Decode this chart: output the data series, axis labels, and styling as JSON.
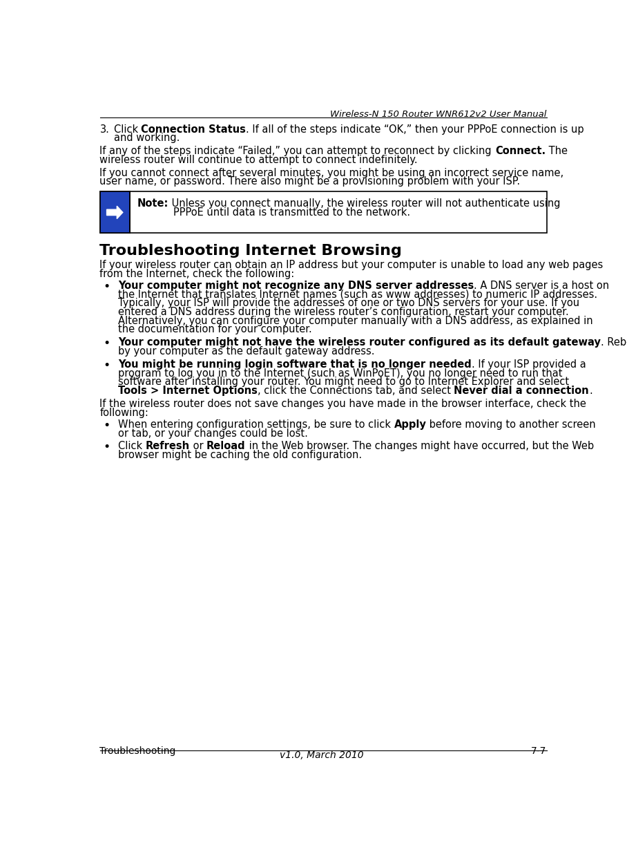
{
  "header_text": "Wireless-N 150 Router WNR612v2 User Manual",
  "footer_left": "Troubleshooting",
  "footer_right": "7-7",
  "footer_center": "v1.0, March 2010",
  "bg_color": "#ffffff",
  "text_color": "#000000",
  "arrow_box_color": "#2244bb"
}
